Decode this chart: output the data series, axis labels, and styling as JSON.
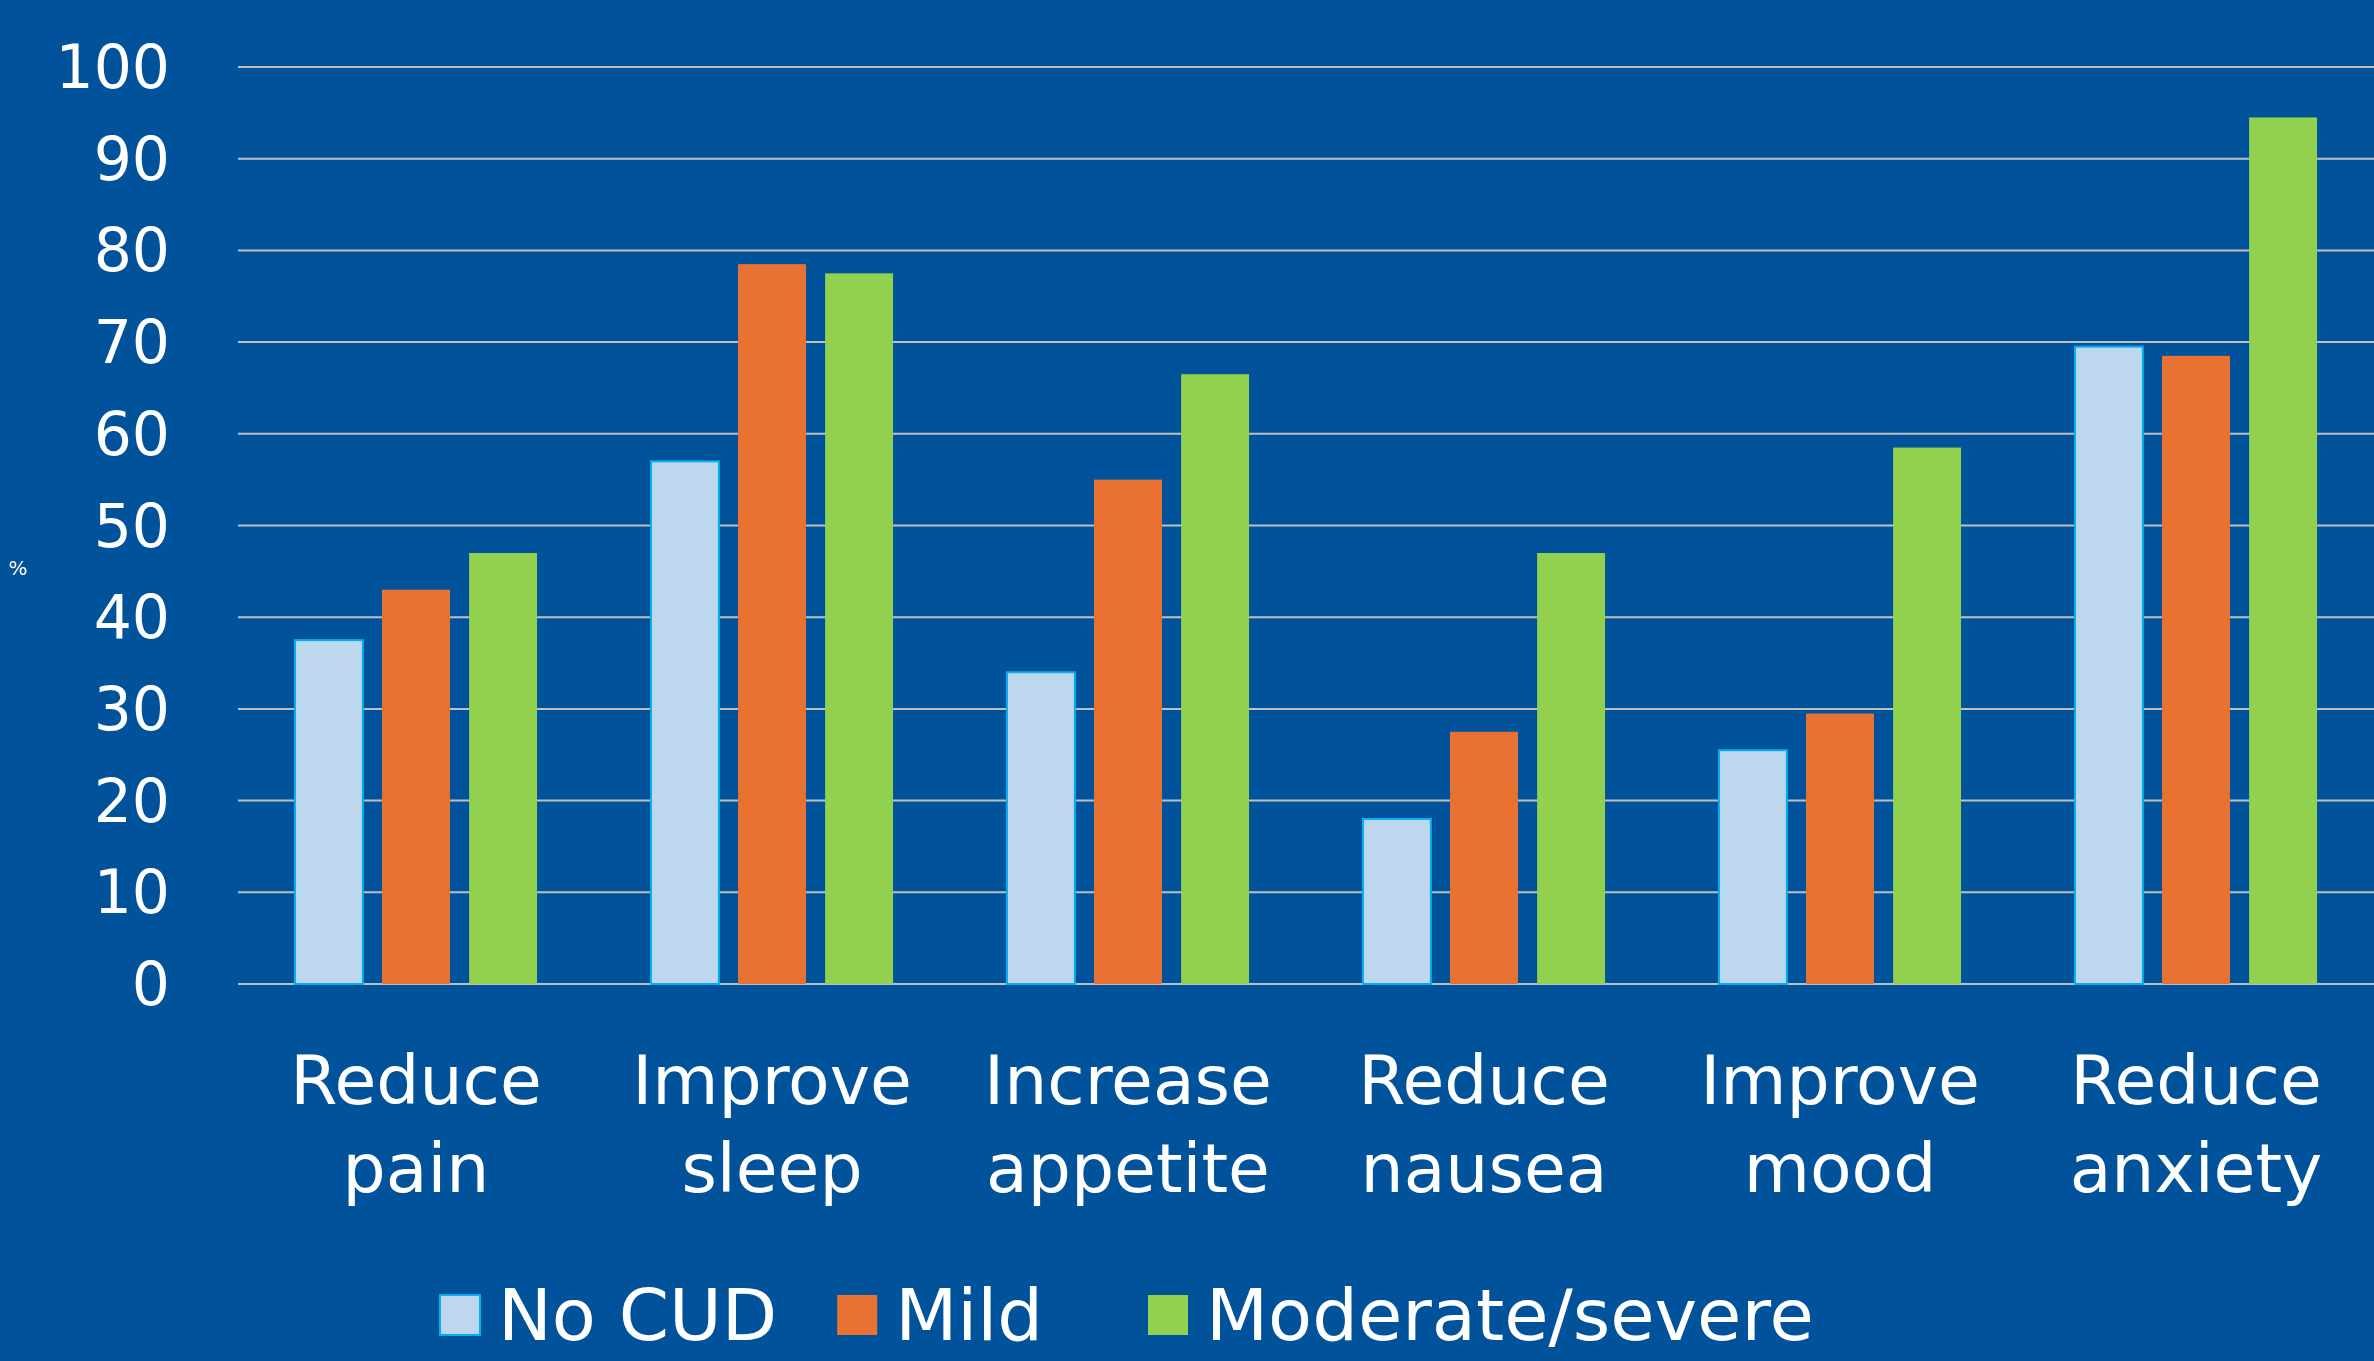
{
  "chart_data": {
    "type": "bar",
    "ylabel": "%",
    "categories": [
      "Reduce pain",
      "Improve sleep",
      "Increase appetite",
      "Reduce nausea",
      "Improve mood",
      "Reduce anxiety"
    ],
    "series": [
      {
        "name": "No CUD",
        "color": "#bdd7ee",
        "values": [
          37.5,
          57,
          34,
          18,
          25.5,
          69.5
        ]
      },
      {
        "name": "Mild",
        "color": "#e97132",
        "values": [
          43,
          78.5,
          55,
          27.5,
          29.5,
          68.5
        ]
      },
      {
        "name": "Moderate/severe",
        "color": "#92d050",
        "values": [
          47,
          77.5,
          66.5,
          47,
          58.5,
          94.5
        ]
      }
    ],
    "ylim": [
      0,
      100
    ],
    "yticks": [
      0,
      10,
      20,
      30,
      40,
      50,
      60,
      70,
      80,
      90,
      100
    ],
    "grid": "y",
    "legend": "bottom"
  }
}
